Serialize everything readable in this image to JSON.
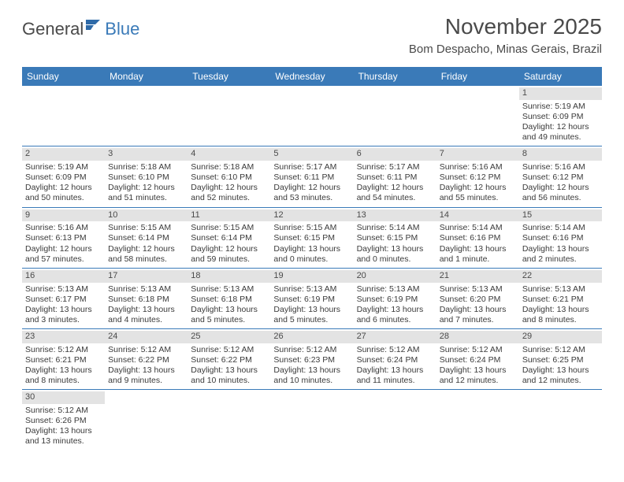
{
  "logo": {
    "text1": "General",
    "text2": "Blue"
  },
  "title": "November 2025",
  "subtitle": "Bom Despacho, Minas Gerais, Brazil",
  "colors": {
    "header_bg": "#3a7ab8",
    "header_text": "#ffffff",
    "daynum_bg": "#e3e3e3",
    "border": "#3a7ab8",
    "body_text": "#3a3a3a",
    "title_text": "#4a4a4a"
  },
  "typography": {
    "title_fontsize": 28,
    "subtitle_fontsize": 15,
    "header_fontsize": 12,
    "cell_fontsize": 10.5
  },
  "day_headers": [
    "Sunday",
    "Monday",
    "Tuesday",
    "Wednesday",
    "Thursday",
    "Friday",
    "Saturday"
  ],
  "weeks": [
    [
      {
        "n": "",
        "sr": "",
        "ss": "",
        "dl": ""
      },
      {
        "n": "",
        "sr": "",
        "ss": "",
        "dl": ""
      },
      {
        "n": "",
        "sr": "",
        "ss": "",
        "dl": ""
      },
      {
        "n": "",
        "sr": "",
        "ss": "",
        "dl": ""
      },
      {
        "n": "",
        "sr": "",
        "ss": "",
        "dl": ""
      },
      {
        "n": "",
        "sr": "",
        "ss": "",
        "dl": ""
      },
      {
        "n": "1",
        "sr": "Sunrise: 5:19 AM",
        "ss": "Sunset: 6:09 PM",
        "dl": "Daylight: 12 hours and 49 minutes."
      }
    ],
    [
      {
        "n": "2",
        "sr": "Sunrise: 5:19 AM",
        "ss": "Sunset: 6:09 PM",
        "dl": "Daylight: 12 hours and 50 minutes."
      },
      {
        "n": "3",
        "sr": "Sunrise: 5:18 AM",
        "ss": "Sunset: 6:10 PM",
        "dl": "Daylight: 12 hours and 51 minutes."
      },
      {
        "n": "4",
        "sr": "Sunrise: 5:18 AM",
        "ss": "Sunset: 6:10 PM",
        "dl": "Daylight: 12 hours and 52 minutes."
      },
      {
        "n": "5",
        "sr": "Sunrise: 5:17 AM",
        "ss": "Sunset: 6:11 PM",
        "dl": "Daylight: 12 hours and 53 minutes."
      },
      {
        "n": "6",
        "sr": "Sunrise: 5:17 AM",
        "ss": "Sunset: 6:11 PM",
        "dl": "Daylight: 12 hours and 54 minutes."
      },
      {
        "n": "7",
        "sr": "Sunrise: 5:16 AM",
        "ss": "Sunset: 6:12 PM",
        "dl": "Daylight: 12 hours and 55 minutes."
      },
      {
        "n": "8",
        "sr": "Sunrise: 5:16 AM",
        "ss": "Sunset: 6:12 PM",
        "dl": "Daylight: 12 hours and 56 minutes."
      }
    ],
    [
      {
        "n": "9",
        "sr": "Sunrise: 5:16 AM",
        "ss": "Sunset: 6:13 PM",
        "dl": "Daylight: 12 hours and 57 minutes."
      },
      {
        "n": "10",
        "sr": "Sunrise: 5:15 AM",
        "ss": "Sunset: 6:14 PM",
        "dl": "Daylight: 12 hours and 58 minutes."
      },
      {
        "n": "11",
        "sr": "Sunrise: 5:15 AM",
        "ss": "Sunset: 6:14 PM",
        "dl": "Daylight: 12 hours and 59 minutes."
      },
      {
        "n": "12",
        "sr": "Sunrise: 5:15 AM",
        "ss": "Sunset: 6:15 PM",
        "dl": "Daylight: 13 hours and 0 minutes."
      },
      {
        "n": "13",
        "sr": "Sunrise: 5:14 AM",
        "ss": "Sunset: 6:15 PM",
        "dl": "Daylight: 13 hours and 0 minutes."
      },
      {
        "n": "14",
        "sr": "Sunrise: 5:14 AM",
        "ss": "Sunset: 6:16 PM",
        "dl": "Daylight: 13 hours and 1 minute."
      },
      {
        "n": "15",
        "sr": "Sunrise: 5:14 AM",
        "ss": "Sunset: 6:16 PM",
        "dl": "Daylight: 13 hours and 2 minutes."
      }
    ],
    [
      {
        "n": "16",
        "sr": "Sunrise: 5:13 AM",
        "ss": "Sunset: 6:17 PM",
        "dl": "Daylight: 13 hours and 3 minutes."
      },
      {
        "n": "17",
        "sr": "Sunrise: 5:13 AM",
        "ss": "Sunset: 6:18 PM",
        "dl": "Daylight: 13 hours and 4 minutes."
      },
      {
        "n": "18",
        "sr": "Sunrise: 5:13 AM",
        "ss": "Sunset: 6:18 PM",
        "dl": "Daylight: 13 hours and 5 minutes."
      },
      {
        "n": "19",
        "sr": "Sunrise: 5:13 AM",
        "ss": "Sunset: 6:19 PM",
        "dl": "Daylight: 13 hours and 5 minutes."
      },
      {
        "n": "20",
        "sr": "Sunrise: 5:13 AM",
        "ss": "Sunset: 6:19 PM",
        "dl": "Daylight: 13 hours and 6 minutes."
      },
      {
        "n": "21",
        "sr": "Sunrise: 5:13 AM",
        "ss": "Sunset: 6:20 PM",
        "dl": "Daylight: 13 hours and 7 minutes."
      },
      {
        "n": "22",
        "sr": "Sunrise: 5:13 AM",
        "ss": "Sunset: 6:21 PM",
        "dl": "Daylight: 13 hours and 8 minutes."
      }
    ],
    [
      {
        "n": "23",
        "sr": "Sunrise: 5:12 AM",
        "ss": "Sunset: 6:21 PM",
        "dl": "Daylight: 13 hours and 8 minutes."
      },
      {
        "n": "24",
        "sr": "Sunrise: 5:12 AM",
        "ss": "Sunset: 6:22 PM",
        "dl": "Daylight: 13 hours and 9 minutes."
      },
      {
        "n": "25",
        "sr": "Sunrise: 5:12 AM",
        "ss": "Sunset: 6:22 PM",
        "dl": "Daylight: 13 hours and 10 minutes."
      },
      {
        "n": "26",
        "sr": "Sunrise: 5:12 AM",
        "ss": "Sunset: 6:23 PM",
        "dl": "Daylight: 13 hours and 10 minutes."
      },
      {
        "n": "27",
        "sr": "Sunrise: 5:12 AM",
        "ss": "Sunset: 6:24 PM",
        "dl": "Daylight: 13 hours and 11 minutes."
      },
      {
        "n": "28",
        "sr": "Sunrise: 5:12 AM",
        "ss": "Sunset: 6:24 PM",
        "dl": "Daylight: 13 hours and 12 minutes."
      },
      {
        "n": "29",
        "sr": "Sunrise: 5:12 AM",
        "ss": "Sunset: 6:25 PM",
        "dl": "Daylight: 13 hours and 12 minutes."
      }
    ],
    [
      {
        "n": "30",
        "sr": "Sunrise: 5:12 AM",
        "ss": "Sunset: 6:26 PM",
        "dl": "Daylight: 13 hours and 13 minutes."
      },
      {
        "n": "",
        "sr": "",
        "ss": "",
        "dl": ""
      },
      {
        "n": "",
        "sr": "",
        "ss": "",
        "dl": ""
      },
      {
        "n": "",
        "sr": "",
        "ss": "",
        "dl": ""
      },
      {
        "n": "",
        "sr": "",
        "ss": "",
        "dl": ""
      },
      {
        "n": "",
        "sr": "",
        "ss": "",
        "dl": ""
      },
      {
        "n": "",
        "sr": "",
        "ss": "",
        "dl": ""
      }
    ]
  ]
}
